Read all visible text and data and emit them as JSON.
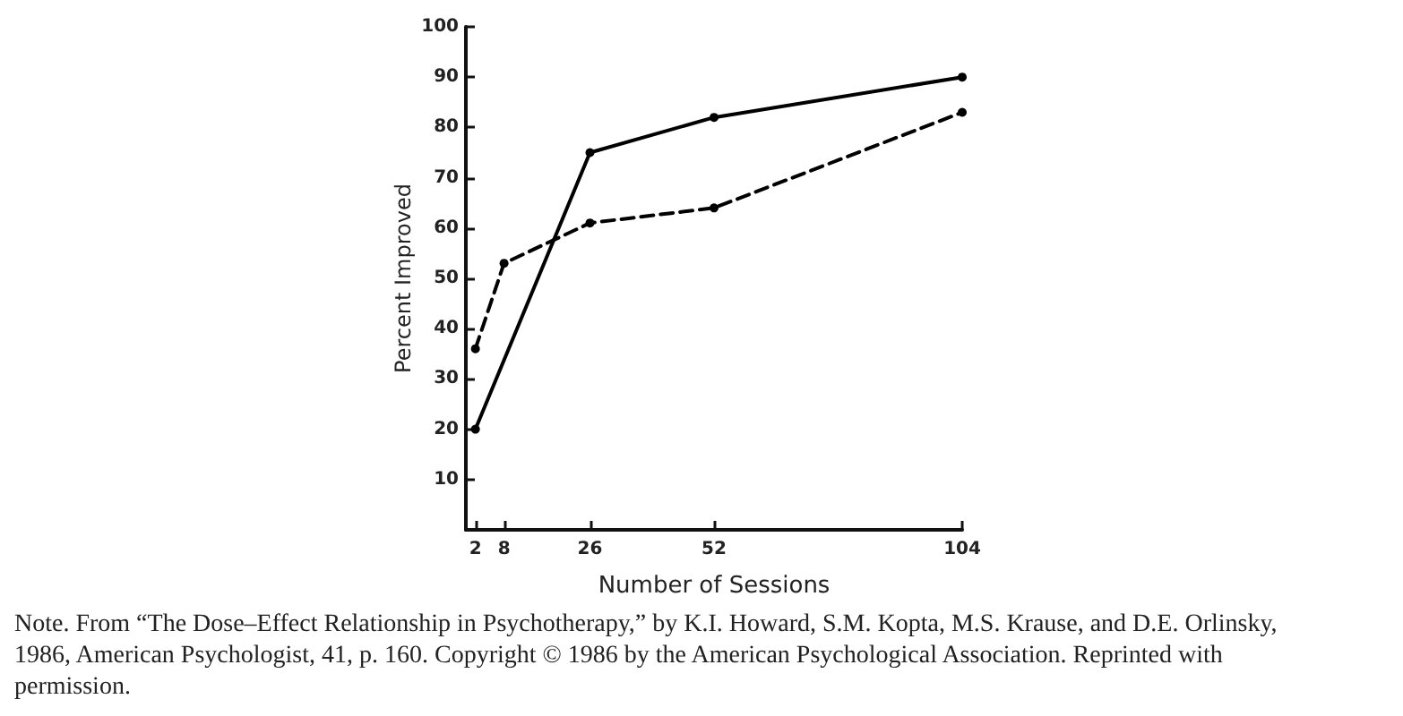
{
  "chart_data": {
    "type": "line",
    "xlabel": "Number of Sessions",
    "ylabel": "Percent Improved",
    "xlim": [
      0,
      104
    ],
    "xticks": [
      2,
      8,
      26,
      52,
      104
    ],
    "ylim": [
      0,
      100
    ],
    "yticks": [
      10,
      20,
      30,
      40,
      50,
      60,
      70,
      80,
      90,
      100
    ],
    "marker": "circle",
    "series": [
      {
        "x": [
          2,
          26,
          52,
          104
        ],
        "values": [
          20,
          75,
          82,
          90
        ],
        "color": "#000000",
        "line_style": "solid"
      },
      {
        "x": [
          2,
          8,
          26,
          52,
          104
        ],
        "values": [
          36,
          53,
          61,
          64,
          83
        ],
        "color": "#000000",
        "line_style": "dashed"
      }
    ],
    "annotations": [
      "Note. From “The Dose–Effect Relationship in Psychotherapy,” by K.I. Howard, S.M. Kopta, M.S. Krause, and D.E. Orlinsky, 1986, American Psychologist, 41, p. 160. Copyright © 1986 by the American Psychological Association. Reprinted with permission."
    ]
  }
}
